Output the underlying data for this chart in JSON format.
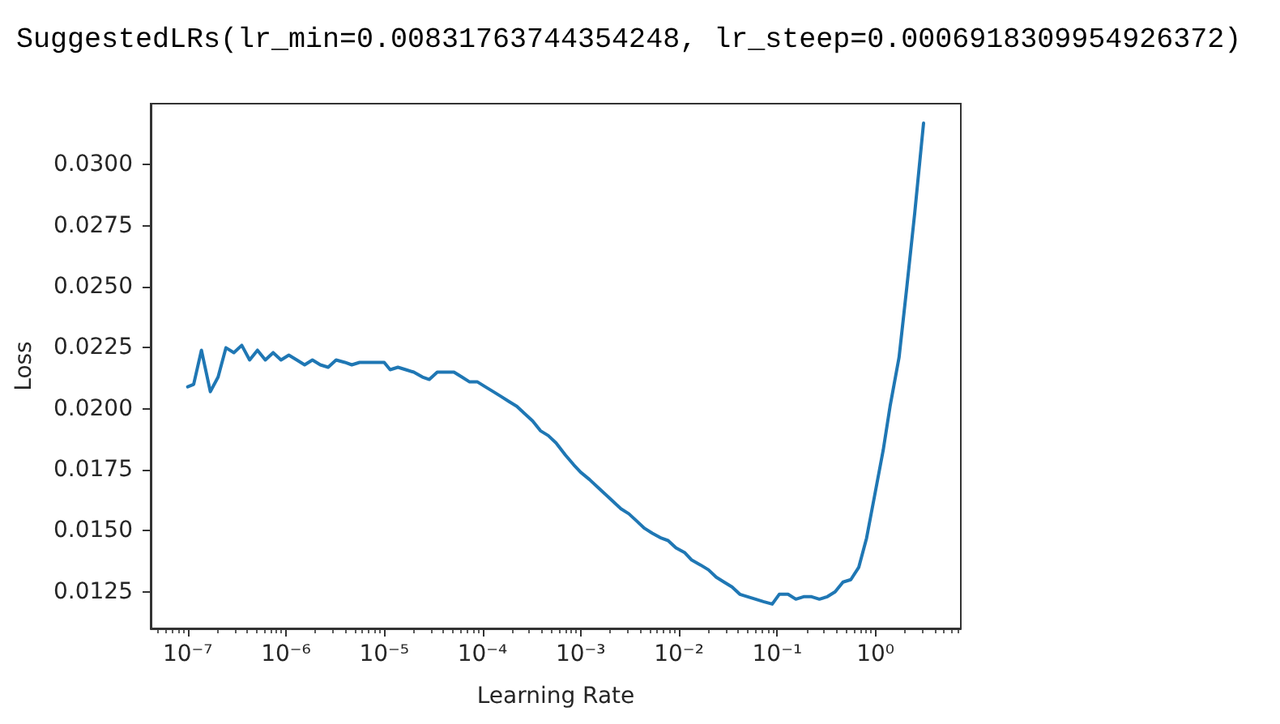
{
  "chart_data": {
    "type": "line",
    "title": "SuggestedLRs(lr_min=0.00831763744354248, lr_steep=0.0006918309954926372)",
    "xlabel": "Learning Rate",
    "ylabel": "Loss",
    "log": "x",
    "x": [
      1e-07,
      1.15e-07,
      1.38e-07,
      1.7e-07,
      2.04e-07,
      2.45e-07,
      2.95e-07,
      3.55e-07,
      4.27e-07,
      5.13e-07,
      6.17e-07,
      7.41e-07,
      8.91e-07,
      1.07e-06,
      1.29e-06,
      1.55e-06,
      1.86e-06,
      2.24e-06,
      2.69e-06,
      3.24e-06,
      3.98e-06,
      4.68e-06,
      5.62e-06,
      6.92e-06,
      8.32e-06,
      1e-05,
      1.15e-05,
      1.38e-05,
      1.66e-05,
      2e-05,
      2.45e-05,
      2.88e-05,
      3.47e-05,
      4.27e-05,
      5.13e-05,
      6.17e-05,
      7.41e-05,
      8.91e-05,
      0.000107,
      0.000129,
      0.000155,
      0.000186,
      0.000224,
      0.000269,
      0.000324,
      0.000389,
      0.000468,
      0.000562,
      0.0007,
      0.000851,
      0.001,
      0.00123,
      0.00148,
      0.00178,
      0.00214,
      0.00257,
      0.00309,
      0.00372,
      0.00447,
      0.00537,
      0.00661,
      0.00776,
      0.00933,
      0.0115,
      0.0135,
      0.0166,
      0.02,
      0.024,
      0.0288,
      0.0347,
      0.0417,
      0.0501,
      0.0603,
      0.0724,
      0.0891,
      0.105,
      0.129,
      0.155,
      0.186,
      0.224,
      0.269,
      0.324,
      0.389,
      0.468,
      0.562,
      0.676,
      0.813,
      0.977,
      1.2,
      1.41,
      1.74,
      2.09,
      2.51,
      3.09
    ],
    "series": [
      {
        "color": "#1f77b4",
        "values": [
          0.0209,
          0.021,
          0.0224,
          0.0207,
          0.0213,
          0.0225,
          0.0223,
          0.0226,
          0.022,
          0.0224,
          0.022,
          0.0223,
          0.022,
          0.0222,
          0.022,
          0.0218,
          0.022,
          0.0218,
          0.0217,
          0.022,
          0.0219,
          0.0218,
          0.0219,
          0.0219,
          0.0219,
          0.0219,
          0.0216,
          0.0217,
          0.0216,
          0.0215,
          0.0213,
          0.0212,
          0.0215,
          0.0215,
          0.0215,
          0.0213,
          0.0211,
          0.0211,
          0.0209,
          0.0207,
          0.0205,
          0.0203,
          0.0201,
          0.0198,
          0.0195,
          0.0191,
          0.0189,
          0.0186,
          0.0181,
          0.0177,
          0.0174,
          0.0171,
          0.0168,
          0.0165,
          0.0162,
          0.0159,
          0.0157,
          0.0154,
          0.0151,
          0.0149,
          0.0147,
          0.0146,
          0.0143,
          0.0141,
          0.0138,
          0.0136,
          0.0134,
          0.0131,
          0.0129,
          0.0127,
          0.0124,
          0.0123,
          0.0122,
          0.0121,
          0.012,
          0.0124,
          0.0124,
          0.0122,
          0.0123,
          0.0123,
          0.0122,
          0.0123,
          0.0125,
          0.0129,
          0.013,
          0.0135,
          0.0147,
          0.0164,
          0.0183,
          0.0201,
          0.0221,
          0.025,
          0.028,
          0.0317
        ]
      }
    ],
    "xlim": [
      4.2e-08,
      7.4
    ],
    "ylim": [
      0.011,
      0.0325
    ],
    "xticks": [
      {
        "value": 1e-07,
        "label": "10⁻⁷"
      },
      {
        "value": 1e-06,
        "label": "10⁻⁶"
      },
      {
        "value": 1e-05,
        "label": "10⁻⁵"
      },
      {
        "value": 0.0001,
        "label": "10⁻⁴"
      },
      {
        "value": 0.001,
        "label": "10⁻³"
      },
      {
        "value": 0.01,
        "label": "10⁻²"
      },
      {
        "value": 0.1,
        "label": "10⁻¹"
      },
      {
        "value": 1,
        "label": "10⁰"
      },
      {
        "value": 5e-08,
        "label": null
      },
      {
        "value": 6e-08,
        "label": null
      },
      {
        "value": 7e-08,
        "label": null
      },
      {
        "value": 8e-08,
        "label": null
      },
      {
        "value": 9e-08,
        "label": null
      },
      {
        "value": 2e-07,
        "label": null
      },
      {
        "value": 3e-07,
        "label": null
      },
      {
        "value": 4e-07,
        "label": null
      },
      {
        "value": 5e-07,
        "label": null
      },
      {
        "value": 6e-07,
        "label": null
      },
      {
        "value": 7e-07,
        "label": null
      },
      {
        "value": 8e-07,
        "label": null
      },
      {
        "value": 9e-07,
        "label": null
      },
      {
        "value": 2e-06,
        "label": null
      },
      {
        "value": 3e-06,
        "label": null
      },
      {
        "value": 4e-06,
        "label": null
      },
      {
        "value": 5e-06,
        "label": null
      },
      {
        "value": 6e-06,
        "label": null
      },
      {
        "value": 7e-06,
        "label": null
      },
      {
        "value": 8e-06,
        "label": null
      },
      {
        "value": 9e-06,
        "label": null
      },
      {
        "value": 2e-05,
        "label": null
      },
      {
        "value": 3e-05,
        "label": null
      },
      {
        "value": 4e-05,
        "label": null
      },
      {
        "value": 5e-05,
        "label": null
      },
      {
        "value": 6e-05,
        "label": null
      },
      {
        "value": 7e-05,
        "label": null
      },
      {
        "value": 8e-05,
        "label": null
      },
      {
        "value": 9e-05,
        "label": null
      },
      {
        "value": 0.0002,
        "label": null
      },
      {
        "value": 0.0003,
        "label": null
      },
      {
        "value": 0.0004,
        "label": null
      },
      {
        "value": 0.0005,
        "label": null
      },
      {
        "value": 0.0006,
        "label": null
      },
      {
        "value": 0.0007,
        "label": null
      },
      {
        "value": 0.0008,
        "label": null
      },
      {
        "value": 0.0009,
        "label": null
      },
      {
        "value": 0.002,
        "label": null
      },
      {
        "value": 0.003,
        "label": null
      },
      {
        "value": 0.004,
        "label": null
      },
      {
        "value": 0.005,
        "label": null
      },
      {
        "value": 0.006,
        "label": null
      },
      {
        "value": 0.007,
        "label": null
      },
      {
        "value": 0.008,
        "label": null
      },
      {
        "value": 0.009,
        "label": null
      },
      {
        "value": 0.02,
        "label": null
      },
      {
        "value": 0.03,
        "label": null
      },
      {
        "value": 0.04,
        "label": null
      },
      {
        "value": 0.05,
        "label": null
      },
      {
        "value": 0.06,
        "label": null
      },
      {
        "value": 0.07,
        "label": null
      },
      {
        "value": 0.08,
        "label": null
      },
      {
        "value": 0.09,
        "label": null
      },
      {
        "value": 0.2,
        "label": null
      },
      {
        "value": 0.3,
        "label": null
      },
      {
        "value": 0.4,
        "label": null
      },
      {
        "value": 0.5,
        "label": null
      },
      {
        "value": 0.6,
        "label": null
      },
      {
        "value": 0.7,
        "label": null
      },
      {
        "value": 0.8,
        "label": null
      },
      {
        "value": 0.9,
        "label": null
      },
      {
        "value": 2,
        "label": null
      },
      {
        "value": 3,
        "label": null
      },
      {
        "value": 4,
        "label": null
      },
      {
        "value": 5,
        "label": null
      },
      {
        "value": 6,
        "label": null
      },
      {
        "value": 7,
        "label": null
      }
    ],
    "yticks": [
      0.0125,
      {
        "value": 0.015,
        "label": "0.0150"
      },
      0.0175,
      {
        "value": 0.02,
        "label": "0.0200"
      },
      0.0225,
      {
        "value": 0.025,
        "label": "0.0250"
      },
      0.0275,
      {
        "value": 0.03,
        "label": "0.0300"
      }
    ]
  }
}
